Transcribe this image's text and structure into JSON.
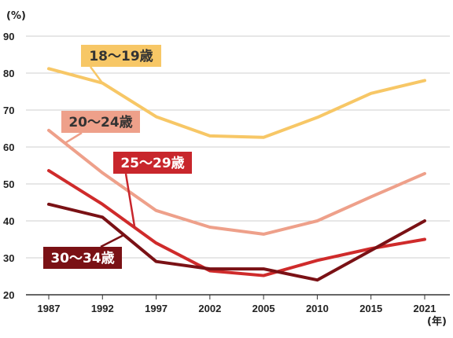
{
  "chart_data": {
    "type": "line",
    "x": [
      "1987",
      "1992",
      "1997",
      "2002",
      "2005",
      "2010",
      "2015",
      "2021"
    ],
    "ylim": [
      20,
      90
    ],
    "yticks": [
      20,
      30,
      40,
      50,
      60,
      70,
      80,
      90
    ],
    "y_unit": "(%)",
    "x_unit": "(年)",
    "grid": "horizontal",
    "series": [
      {
        "name": "18〜19歳",
        "color": "#f7c766",
        "label_color": "#f7c766",
        "label_text_color": "#333333",
        "values": [
          81.2,
          77.3,
          68.2,
          63.0,
          62.6,
          68.0,
          74.5,
          78.0
        ]
      },
      {
        "name": "20〜24歳",
        "color": "#eea08a",
        "label_color": "#eea08a",
        "label_text_color": "#333333",
        "values": [
          64.5,
          53.0,
          42.8,
          38.3,
          36.4,
          40.0,
          46.5,
          52.8
        ]
      },
      {
        "name": "25〜29歳",
        "color": "#cf2b2b",
        "label_color": "#c8262c",
        "label_text_color": "#ffffff",
        "values": [
          53.6,
          44.5,
          34.0,
          26.5,
          25.2,
          29.3,
          32.5,
          35.0
        ]
      },
      {
        "name": "30〜34歳",
        "color": "#7a1115",
        "label_color": "#7a1115",
        "label_text_color": "#ffffff",
        "values": [
          44.5,
          41.0,
          29.0,
          27.0,
          27.0,
          24.0,
          32.0,
          40.0
        ]
      }
    ]
  }
}
